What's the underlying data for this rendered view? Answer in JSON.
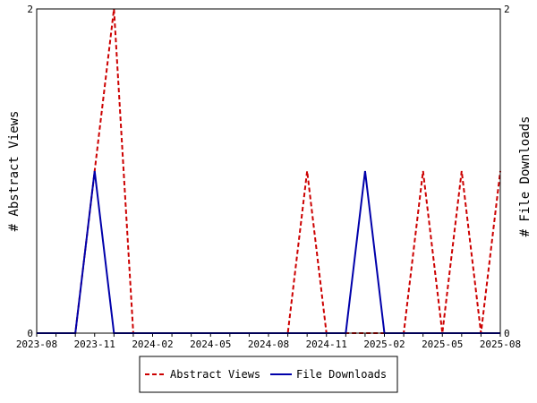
{
  "chart_data": {
    "type": "line",
    "x": [
      "2023-08",
      "2023-09",
      "2023-10",
      "2023-11",
      "2023-12",
      "2024-01",
      "2024-02",
      "2024-03",
      "2024-04",
      "2024-05",
      "2024-06",
      "2024-07",
      "2024-08",
      "2024-09",
      "2024-10",
      "2024-11",
      "2024-12",
      "2025-01",
      "2025-02",
      "2025-03",
      "2025-04",
      "2025-05",
      "2025-06",
      "2025-07",
      "2025-08"
    ],
    "xticks": [
      "2023-08",
      "2023-11",
      "2024-02",
      "2024-05",
      "2024-08",
      "2024-11",
      "2025-02",
      "2025-05",
      "2025-08"
    ],
    "series": [
      {
        "name": "Abstract Views",
        "axis": "left",
        "color": "#cc0000",
        "dash": "dashed",
        "values": [
          0,
          0,
          0,
          1,
          2,
          0,
          0,
          0,
          0,
          0,
          0,
          0,
          0,
          0,
          1,
          0,
          0,
          0,
          0,
          0,
          1,
          0,
          1,
          0,
          1
        ]
      },
      {
        "name": "File Downloads",
        "axis": "right",
        "color": "#0000aa",
        "dash": "solid",
        "values": [
          0,
          0,
          0,
          1,
          0,
          0,
          0,
          0,
          0,
          0,
          0,
          0,
          0,
          0,
          0,
          0,
          0,
          1,
          0,
          0,
          0,
          0,
          0,
          0,
          0
        ]
      }
    ],
    "ylabel": "# Abstract Views",
    "y2label": "# File Downloads",
    "ylim": [
      0,
      2
    ],
    "y2lim": [
      0,
      2
    ],
    "yticks": [
      "0",
      "2"
    ],
    "y2ticks": [
      "0",
      "2"
    ],
    "legend": "bottom"
  }
}
